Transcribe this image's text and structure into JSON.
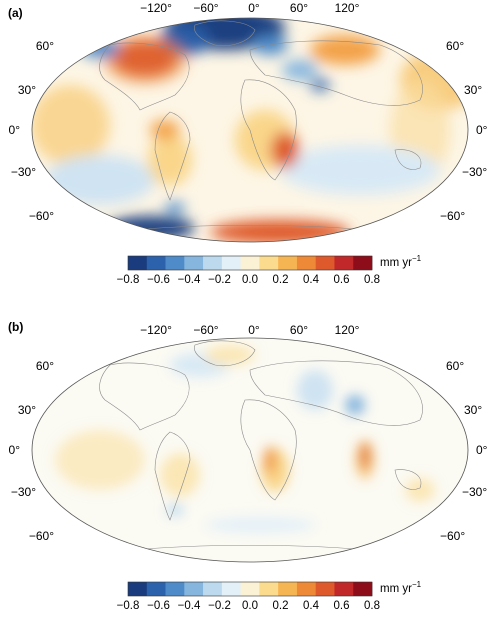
{
  "panels": [
    {
      "id": "a",
      "label": "(a)"
    },
    {
      "id": "b",
      "label": "(b)"
    }
  ],
  "longitude_ticks": [
    "−120°",
    "−60°",
    "0°",
    "60°",
    "120°"
  ],
  "latitude_ticks_left": [
    "60°",
    "30°",
    "0°",
    "−30°",
    "−60°"
  ],
  "latitude_ticks_right": [
    "60°",
    "30°",
    "0°",
    "−30°",
    "−60°"
  ],
  "colorbar": {
    "min": -0.8,
    "max": 0.8,
    "tick_labels": [
      "−0.8",
      "−0.6",
      "−0.4",
      "−0.2",
      "0.0",
      "0.2",
      "0.4",
      "0.6",
      "0.8"
    ],
    "unit": "mm yr",
    "unit_exponent": "−1",
    "colors": [
      "#1a3c7e",
      "#2c62ac",
      "#4f8bc9",
      "#86b6de",
      "#bcd9ee",
      "#e4f0f8",
      "#fbf2d6",
      "#fbdc8e",
      "#f6b553",
      "#ee8a37",
      "#de5a2c",
      "#c0282a",
      "#8e0d1a"
    ]
  }
}
